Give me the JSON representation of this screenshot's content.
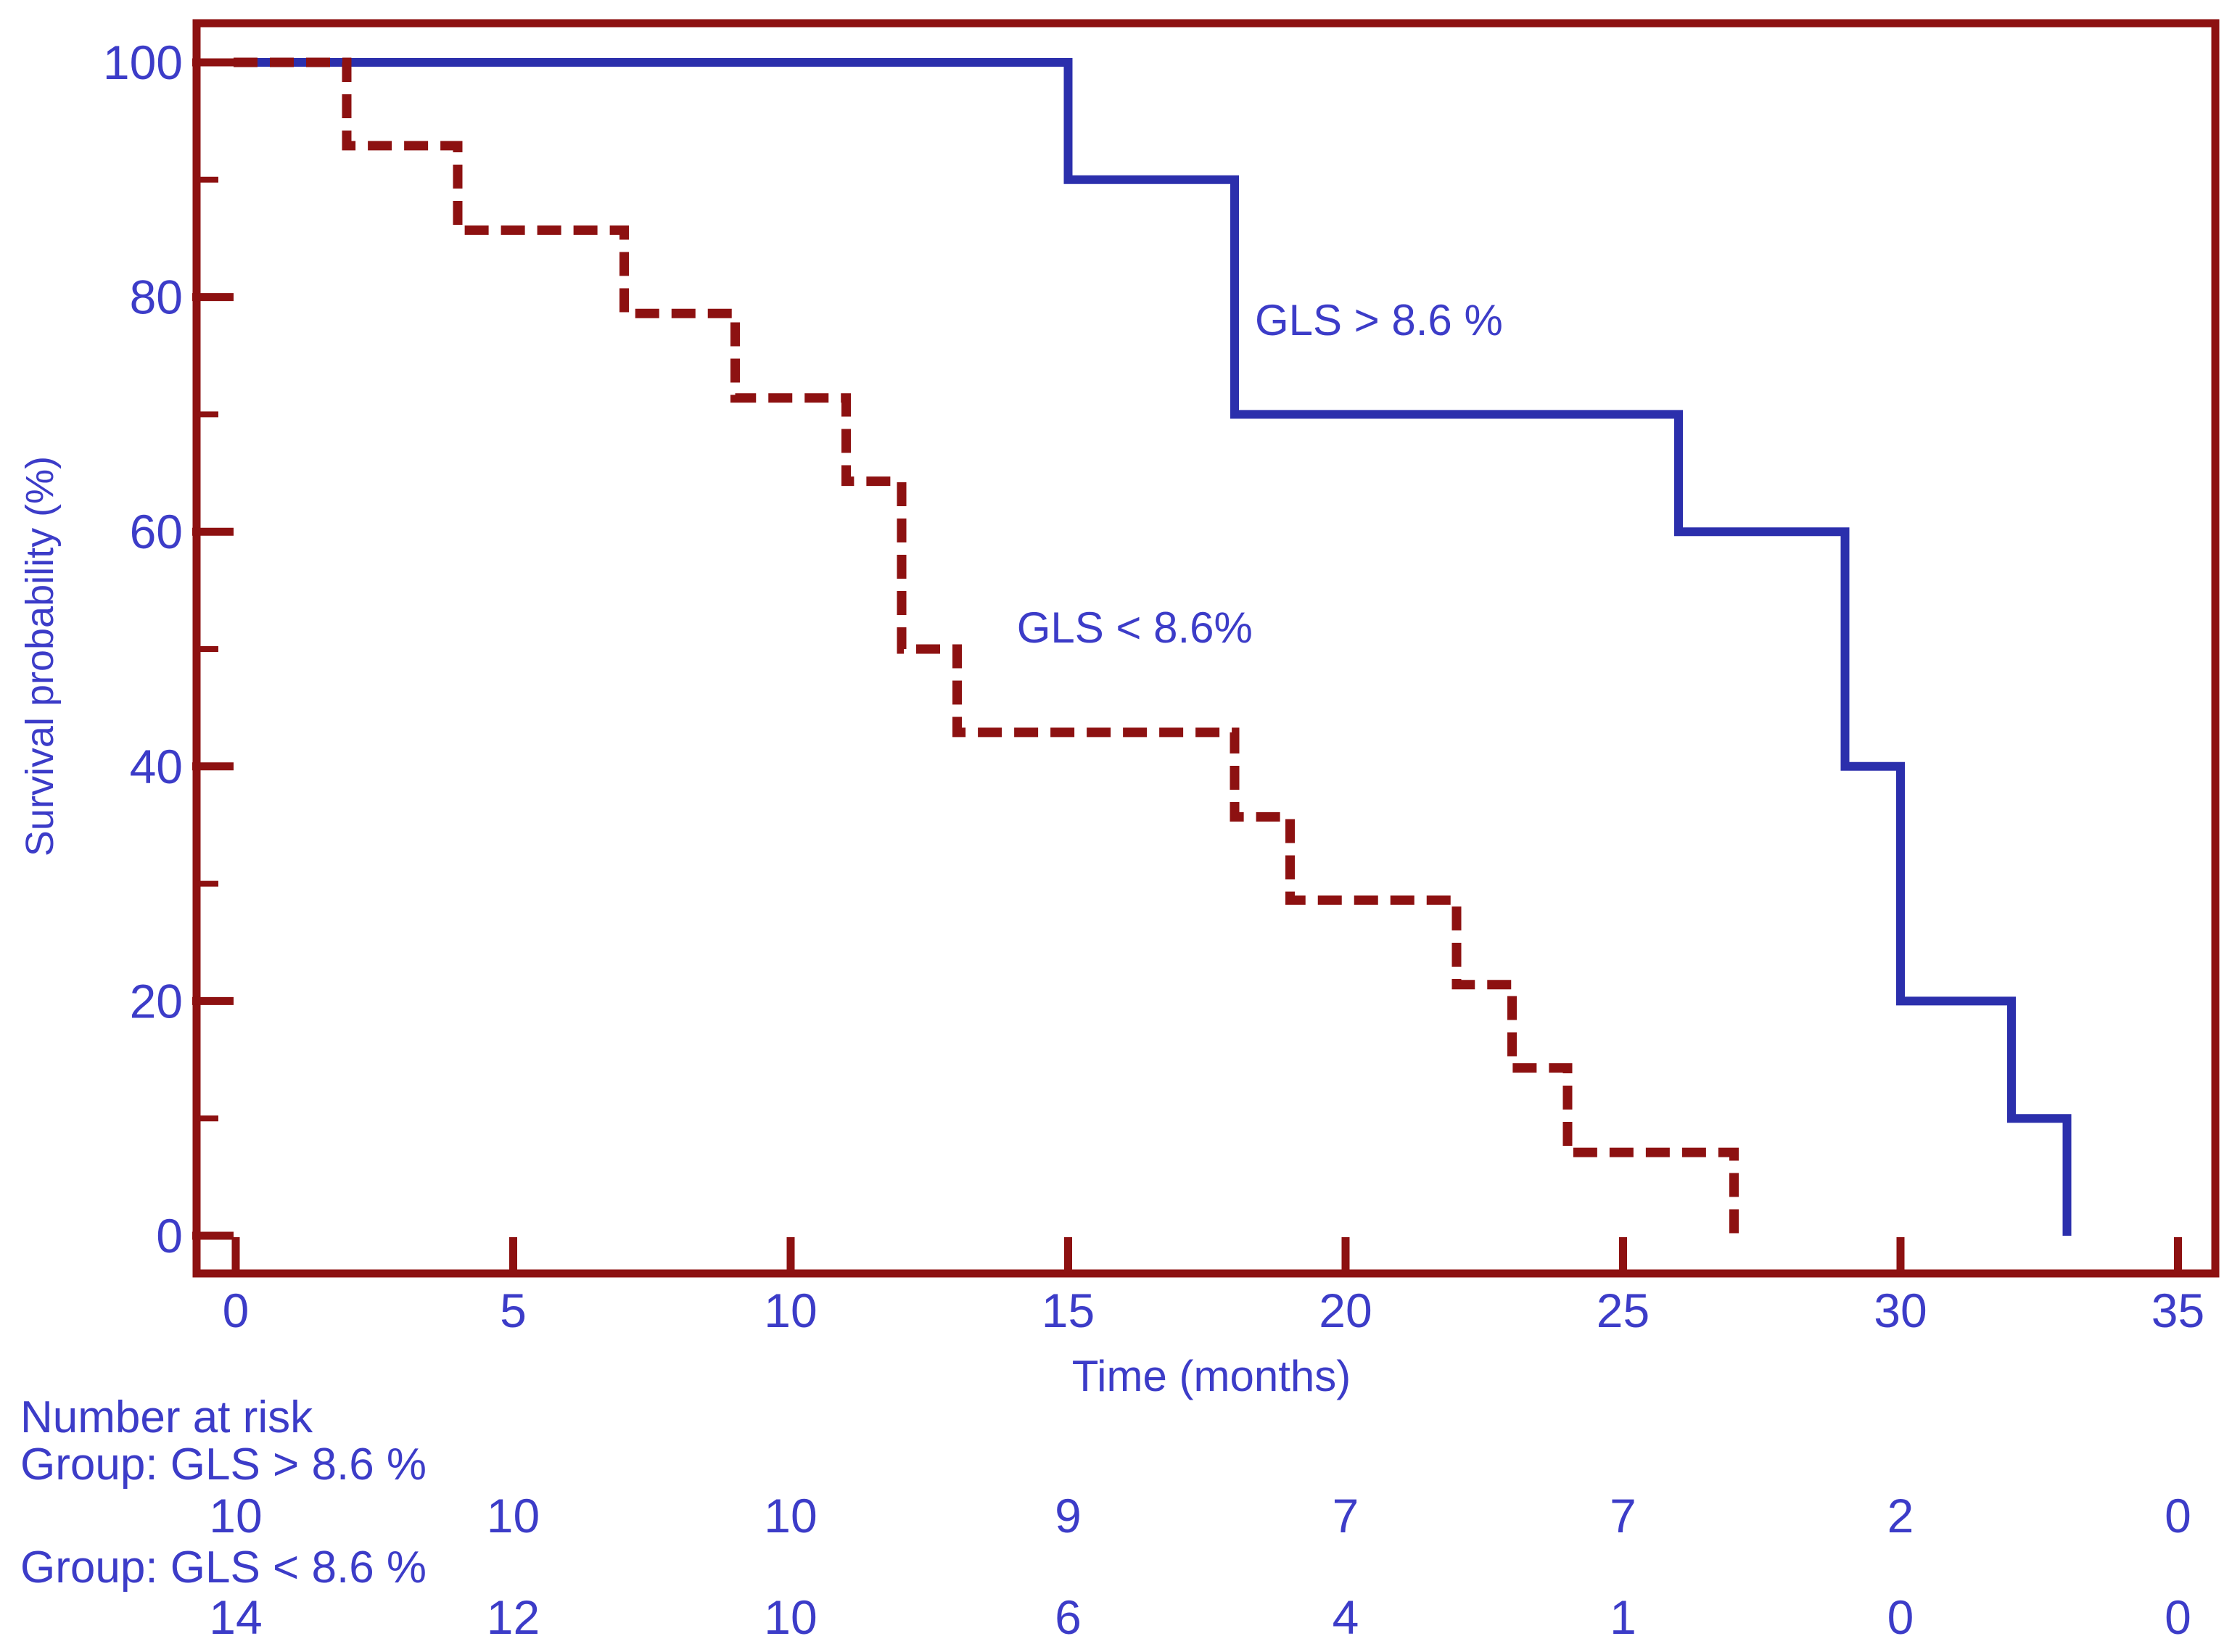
{
  "chart_data": {
    "type": "line",
    "subtype": "kaplan-meier-step",
    "title": "",
    "xlabel": "Time (months)",
    "ylabel": "Survival probability (%)",
    "xlim": [
      0,
      35
    ],
    "ylim": [
      0,
      100
    ],
    "x_ticks": [
      0,
      5,
      10,
      15,
      20,
      25,
      30,
      35
    ],
    "y_ticks_major": [
      0,
      20,
      40,
      60,
      80,
      100
    ],
    "y_ticks_minor": [
      10,
      30,
      50,
      70,
      90
    ],
    "grid": false,
    "legend_position": "in-plot-annotations",
    "series": [
      {
        "name": "GLS > 8.6 %",
        "style": "solid",
        "color": "#2B2FAC",
        "points": [
          [
            0,
            100
          ],
          [
            15,
            100
          ],
          [
            15,
            90
          ],
          [
            18,
            90
          ],
          [
            18,
            70
          ],
          [
            26,
            70
          ],
          [
            26,
            60
          ],
          [
            29,
            60
          ],
          [
            29,
            40
          ],
          [
            30,
            40
          ],
          [
            30,
            20
          ],
          [
            32,
            20
          ],
          [
            32,
            10
          ],
          [
            33,
            10
          ],
          [
            33,
            0
          ]
        ],
        "label": {
          "text": "GLS > 8.6 %",
          "x": 20.6,
          "y": 78
        }
      },
      {
        "name": "GLS < 8.6%",
        "style": "dashed",
        "color": "#8D1111",
        "points": [
          [
            0,
            100
          ],
          [
            2,
            100
          ],
          [
            2,
            92.9
          ],
          [
            4,
            92.9
          ],
          [
            4,
            85.7
          ],
          [
            7,
            85.7
          ],
          [
            7,
            78.6
          ],
          [
            9,
            78.6
          ],
          [
            9,
            71.4
          ],
          [
            11,
            71.4
          ],
          [
            11,
            64.3
          ],
          [
            12,
            64.3
          ],
          [
            12,
            50
          ],
          [
            13,
            50
          ],
          [
            13,
            42.9
          ],
          [
            18,
            42.9
          ],
          [
            18,
            35.7
          ],
          [
            19,
            35.7
          ],
          [
            19,
            28.6
          ],
          [
            22,
            28.6
          ],
          [
            22,
            21.4
          ],
          [
            23,
            21.4
          ],
          [
            23,
            14.3
          ],
          [
            24,
            14.3
          ],
          [
            24,
            7.1
          ],
          [
            27,
            7.1
          ],
          [
            27,
            0
          ]
        ],
        "label": {
          "text": "GLS < 8.6%",
          "x": 16.2,
          "y": 51.8
        }
      }
    ],
    "risk_table": {
      "title": "Number at risk",
      "time_points": [
        0,
        5,
        10,
        15,
        20,
        25,
        30,
        35
      ],
      "groups": [
        {
          "label": "Group: GLS > 8.6 %",
          "counts": [
            "10",
            "10",
            "10",
            "9",
            "7",
            "7",
            "2",
            "0"
          ]
        },
        {
          "label": "Group: GLS < 8.6 %",
          "counts": [
            "14",
            "12",
            "10",
            "6",
            "4",
            "1",
            "0",
            "0"
          ]
        }
      ]
    }
  },
  "colors": {
    "frame_red": "#8D1111",
    "curve_blue": "#2B2FAC",
    "curve_red": "#8D1111",
    "text_blue": "#3C3CC8"
  }
}
